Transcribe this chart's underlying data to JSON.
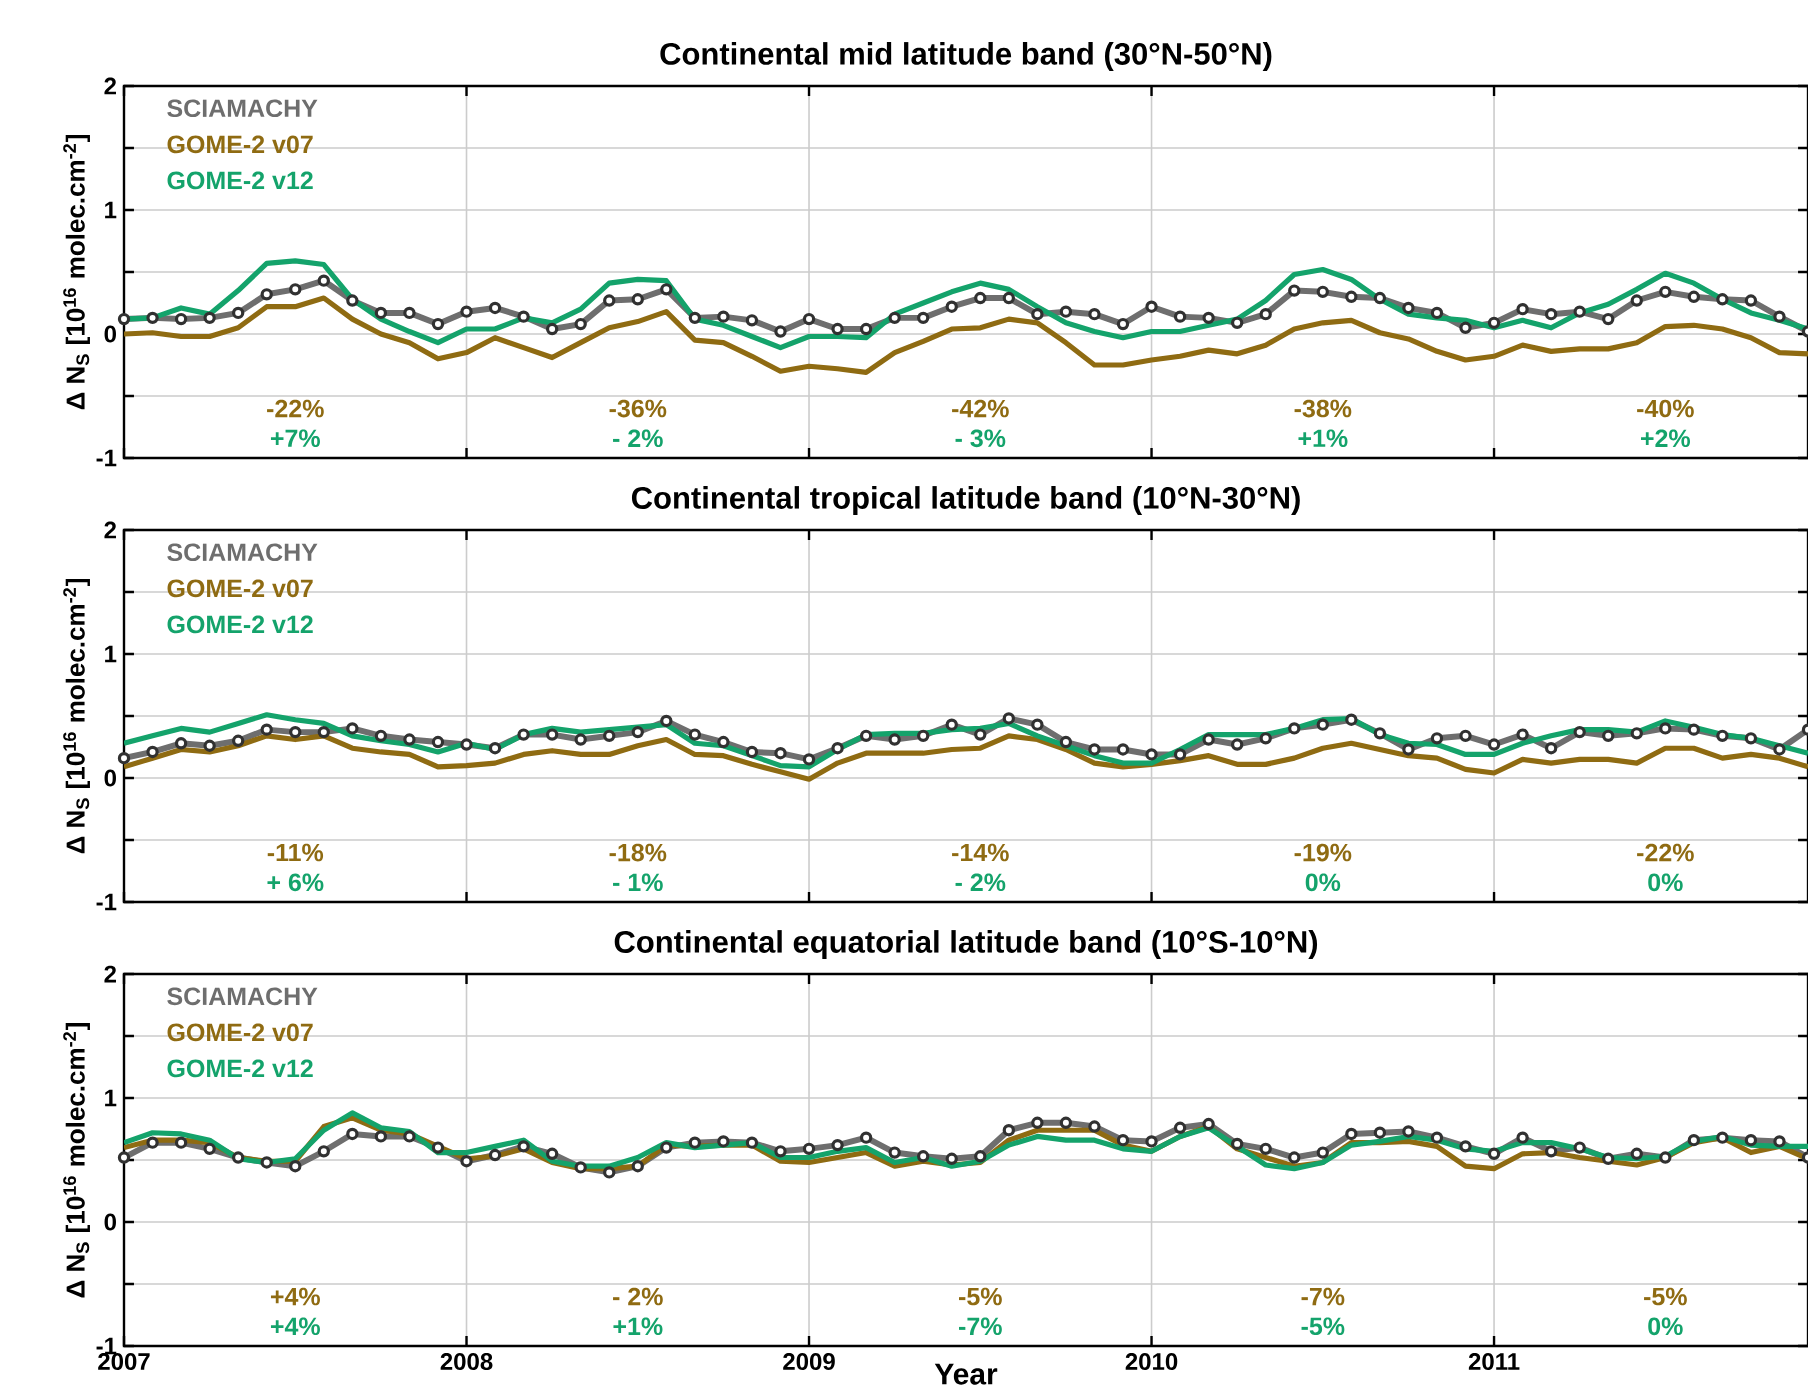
{
  "chart_data": [
    {
      "type": "line",
      "title": "Continental mid latitude band (30°N-50°N)",
      "ylabel": "Δ N$_{S}$ [10$^{16}$ molec.cm$^{-2}$]",
      "x": [
        "2007-01",
        "2007-02",
        "2007-03",
        "2007-04",
        "2007-05",
        "2007-06",
        "2007-07",
        "2007-08",
        "2007-09",
        "2007-10",
        "2007-11",
        "2007-12",
        "2008-01",
        "2008-02",
        "2008-03",
        "2008-04",
        "2008-05",
        "2008-06",
        "2008-07",
        "2008-08",
        "2008-09",
        "2008-10",
        "2008-11",
        "2008-12",
        "2009-01",
        "2009-02",
        "2009-03",
        "2009-04",
        "2009-05",
        "2009-06",
        "2009-07",
        "2009-08",
        "2009-09",
        "2009-10",
        "2009-11",
        "2009-12",
        "2010-01",
        "2010-02",
        "2010-03",
        "2010-04",
        "2010-05",
        "2010-06",
        "2010-07",
        "2010-08",
        "2010-09",
        "2010-10",
        "2010-11",
        "2010-12",
        "2011-01",
        "2011-02",
        "2011-03",
        "2011-04",
        "2011-05",
        "2011-06",
        "2011-07",
        "2011-08",
        "2011-09",
        "2011-10",
        "2011-11",
        "2011-12"
      ],
      "series": [
        {
          "name": "SCIAMACHY",
          "color": "#6e6e6e",
          "marker": "circle",
          "values": [
            0.12,
            0.13,
            0.12,
            0.13,
            0.17,
            0.32,
            0.36,
            0.43,
            0.27,
            0.17,
            0.17,
            0.08,
            0.18,
            0.21,
            0.14,
            0.04,
            0.08,
            0.27,
            0.28,
            0.36,
            0.13,
            0.14,
            0.11,
            0.02,
            0.12,
            0.04,
            0.04,
            0.13,
            0.13,
            0.22,
            0.29,
            0.29,
            0.16,
            0.18,
            0.16,
            0.08,
            0.22,
            0.14,
            0.13,
            0.09,
            0.16,
            0.35,
            0.34,
            0.3,
            0.29,
            0.21,
            0.17,
            0.05,
            0.09,
            0.2,
            0.16,
            0.18,
            0.12,
            0.27,
            0.34,
            0.3,
            0.28,
            0.27,
            0.14,
            0.02
          ]
        },
        {
          "name": "GOME-2 v07",
          "color": "#8f6b12",
          "values": [
            0,
            0.01,
            -0.02,
            -0.02,
            0.05,
            0.22,
            0.22,
            0.29,
            0.12,
            0,
            -0.07,
            -0.2,
            -0.15,
            -0.03,
            -0.11,
            -0.19,
            -0.07,
            0.05,
            0.1,
            0.18,
            -0.05,
            -0.07,
            -0.18,
            -0.3,
            -0.26,
            -0.28,
            -0.31,
            -0.15,
            -0.06,
            0.04,
            0.05,
            0.12,
            0.09,
            -0.07,
            -0.25,
            -0.25,
            -0.21,
            -0.18,
            -0.13,
            -0.16,
            -0.09,
            0.04,
            0.09,
            0.11,
            0.01,
            -0.04,
            -0.14,
            -0.21,
            -0.18,
            -0.09,
            -0.14,
            -0.12,
            -0.12,
            -0.07,
            0.06,
            0.07,
            0.04,
            -0.03,
            -0.15,
            -0.16
          ]
        },
        {
          "name": "GOME-2 v12",
          "color": "#14a36b",
          "values": [
            0.12,
            0.13,
            0.21,
            0.16,
            0.35,
            0.57,
            0.59,
            0.56,
            0.28,
            0.12,
            0.02,
            -0.07,
            0.04,
            0.04,
            0.13,
            0.09,
            0.2,
            0.41,
            0.44,
            0.43,
            0.12,
            0.07,
            -0.02,
            -0.11,
            -0.02,
            -0.02,
            -0.03,
            0.16,
            0.25,
            0.34,
            0.41,
            0.36,
            0.22,
            0.09,
            0.02,
            -0.03,
            0.02,
            0.02,
            0.07,
            0.12,
            0.27,
            0.48,
            0.52,
            0.44,
            0.28,
            0.16,
            0.13,
            0.11,
            0.05,
            0.11,
            0.05,
            0.17,
            0.24,
            0.36,
            0.49,
            0.41,
            0.28,
            0.17,
            0.11,
            0.04
          ]
        }
      ],
      "xlim": [
        "2007",
        "2011-12"
      ],
      "xticks": [
        "2007",
        "2008",
        "2009",
        "2010",
        "2011"
      ],
      "ylim": [
        -1,
        2
      ],
      "yticks": [
        -1,
        {
          "value": -0.5,
          "label": null
        },
        0,
        {
          "value": 0.5,
          "label": null
        },
        1,
        {
          "value": 1.5,
          "label": null
        },
        2
      ],
      "tick_labels": "y",
      "grid": true,
      "legend": "top left",
      "annotations": [
        "-22%",
        "+7%",
        "-36%",
        "- 2%",
        "-42%",
        "- 3%",
        "-38%",
        "+1%",
        "-40%",
        "+2%"
      ]
    },
    {
      "type": "line",
      "title": "Continental tropical latitude band (10°N-30°N)",
      "ylabel": "Δ N$_{S}$ [10$^{16}$ molec.cm$^{-2}$]",
      "x": [
        "2007-01",
        "2007-02",
        "2007-03",
        "2007-04",
        "2007-05",
        "2007-06",
        "2007-07",
        "2007-08",
        "2007-09",
        "2007-10",
        "2007-11",
        "2007-12",
        "2008-01",
        "2008-02",
        "2008-03",
        "2008-04",
        "2008-05",
        "2008-06",
        "2008-07",
        "2008-08",
        "2008-09",
        "2008-10",
        "2008-11",
        "2008-12",
        "2009-01",
        "2009-02",
        "2009-03",
        "2009-04",
        "2009-05",
        "2009-06",
        "2009-07",
        "2009-08",
        "2009-09",
        "2009-10",
        "2009-11",
        "2009-12",
        "2010-01",
        "2010-02",
        "2010-03",
        "2010-04",
        "2010-05",
        "2010-06",
        "2010-07",
        "2010-08",
        "2010-09",
        "2010-10",
        "2010-11",
        "2010-12",
        "2011-01",
        "2011-02",
        "2011-03",
        "2011-04",
        "2011-05",
        "2011-06",
        "2011-07",
        "2011-08",
        "2011-09",
        "2011-10",
        "2011-11",
        "2011-12"
      ],
      "series": [
        {
          "name": "SCIAMACHY",
          "color": "#6e6e6e",
          "marker": "circle",
          "values": [
            0.16,
            0.21,
            0.28,
            0.26,
            0.3,
            0.39,
            0.37,
            0.37,
            0.4,
            0.34,
            0.31,
            0.29,
            0.27,
            0.24,
            0.35,
            0.35,
            0.31,
            0.34,
            0.37,
            0.46,
            0.35,
            0.29,
            0.21,
            0.2,
            0.15,
            0.24,
            0.34,
            0.31,
            0.34,
            0.43,
            0.35,
            0.48,
            0.43,
            0.29,
            0.23,
            0.23,
            0.19,
            0.19,
            0.31,
            0.27,
            0.32,
            0.4,
            0.43,
            0.47,
            0.36,
            0.23,
            0.32,
            0.34,
            0.27,
            0.35,
            0.24,
            0.37,
            0.34,
            0.36,
            0.4,
            0.39,
            0.34,
            0.32,
            0.23,
            0.39
          ]
        },
        {
          "name": "GOME-2 v07",
          "color": "#8f6b12",
          "values": [
            0.09,
            0.16,
            0.23,
            0.21,
            0.26,
            0.34,
            0.31,
            0.34,
            0.24,
            0.21,
            0.19,
            0.09,
            0.1,
            0.12,
            0.19,
            0.22,
            0.19,
            0.19,
            0.26,
            0.31,
            0.19,
            0.18,
            0.11,
            0.05,
            -0.01,
            0.12,
            0.2,
            0.2,
            0.2,
            0.23,
            0.24,
            0.34,
            0.31,
            0.23,
            0.12,
            0.09,
            0.11,
            0.14,
            0.18,
            0.11,
            0.11,
            0.16,
            0.24,
            0.28,
            0.23,
            0.18,
            0.16,
            0.07,
            0.04,
            0.15,
            0.12,
            0.15,
            0.15,
            0.12,
            0.24,
            0.24,
            0.16,
            0.19,
            0.16,
            0.09
          ]
        },
        {
          "name": "GOME-2 v12",
          "color": "#14a36b",
          "values": [
            0.28,
            0.34,
            0.4,
            0.37,
            0.44,
            0.51,
            0.47,
            0.44,
            0.34,
            0.3,
            0.27,
            0.21,
            0.28,
            0.23,
            0.35,
            0.4,
            0.37,
            0.39,
            0.41,
            0.43,
            0.28,
            0.26,
            0.18,
            0.1,
            0.09,
            0.23,
            0.35,
            0.36,
            0.36,
            0.39,
            0.4,
            0.44,
            0.34,
            0.26,
            0.18,
            0.12,
            0.12,
            0.23,
            0.35,
            0.35,
            0.35,
            0.4,
            0.47,
            0.48,
            0.35,
            0.28,
            0.27,
            0.19,
            0.19,
            0.28,
            0.34,
            0.39,
            0.39,
            0.37,
            0.46,
            0.41,
            0.35,
            0.32,
            0.26,
            0.2
          ]
        }
      ],
      "xlim": [
        "2007",
        "2011-12"
      ],
      "xticks": [
        "2007",
        "2008",
        "2009",
        "2010",
        "2011"
      ],
      "ylim": [
        -1,
        2
      ],
      "yticks": [
        -1,
        {
          "value": -0.5,
          "label": null
        },
        0,
        {
          "value": 0.5,
          "label": null
        },
        1,
        {
          "value": 1.5,
          "label": null
        },
        2
      ],
      "tick_labels": "y",
      "grid": true,
      "legend": "top left",
      "annotations": [
        "-11%",
        "+ 6%",
        "-18%",
        "- 1%",
        "-14%",
        "- 2%",
        "-19%",
        "0%",
        "-22%",
        "0%"
      ]
    },
    {
      "type": "line",
      "title": "Continental equatorial latitude band (10°S-10°N)",
      "ylabel": "Δ N$_{S}$ [10$^{16}$ molec.cm$^{-2}$]",
      "xlabel": "Year",
      "x": [
        "2007-01",
        "2007-02",
        "2007-03",
        "2007-04",
        "2007-05",
        "2007-06",
        "2007-07",
        "2007-08",
        "2007-09",
        "2007-10",
        "2007-11",
        "2007-12",
        "2008-01",
        "2008-02",
        "2008-03",
        "2008-04",
        "2008-05",
        "2008-06",
        "2008-07",
        "2008-08",
        "2008-09",
        "2008-10",
        "2008-11",
        "2008-12",
        "2009-01",
        "2009-02",
        "2009-03",
        "2009-04",
        "2009-05",
        "2009-06",
        "2009-07",
        "2009-08",
        "2009-09",
        "2009-10",
        "2009-11",
        "2009-12",
        "2010-01",
        "2010-02",
        "2010-03",
        "2010-04",
        "2010-05",
        "2010-06",
        "2010-07",
        "2010-08",
        "2010-09",
        "2010-10",
        "2010-11",
        "2010-12",
        "2011-01",
        "2011-02",
        "2011-03",
        "2011-04",
        "2011-05",
        "2011-06",
        "2011-07",
        "2011-08",
        "2011-09",
        "2011-10",
        "2011-11",
        "2011-12"
      ],
      "series": [
        {
          "name": "SCIAMACHY",
          "color": "#6e6e6e",
          "marker": "circle",
          "values": [
            0.52,
            0.64,
            0.64,
            0.59,
            0.52,
            0.48,
            0.45,
            0.57,
            0.71,
            0.69,
            0.69,
            0.6,
            0.49,
            0.54,
            0.61,
            0.55,
            0.44,
            0.4,
            0.45,
            0.6,
            0.64,
            0.65,
            0.64,
            0.57,
            0.59,
            0.62,
            0.68,
            0.56,
            0.53,
            0.51,
            0.53,
            0.74,
            0.8,
            0.8,
            0.77,
            0.66,
            0.65,
            0.76,
            0.79,
            0.63,
            0.59,
            0.52,
            0.56,
            0.71,
            0.72,
            0.73,
            0.68,
            0.61,
            0.55,
            0.68,
            0.57,
            0.6,
            0.51,
            0.55,
            0.52,
            0.66,
            0.68,
            0.66,
            0.65,
            0.52
          ]
        },
        {
          "name": "GOME-2 v07",
          "color": "#8f6b12",
          "values": [
            0.6,
            0.66,
            0.66,
            0.64,
            0.52,
            0.49,
            0.49,
            0.77,
            0.84,
            0.74,
            0.71,
            0.61,
            0.51,
            0.53,
            0.59,
            0.48,
            0.43,
            0.43,
            0.45,
            0.62,
            0.61,
            0.62,
            0.62,
            0.49,
            0.48,
            0.52,
            0.56,
            0.45,
            0.49,
            0.46,
            0.48,
            0.66,
            0.74,
            0.74,
            0.74,
            0.62,
            0.57,
            0.69,
            0.77,
            0.59,
            0.52,
            0.45,
            0.48,
            0.64,
            0.64,
            0.65,
            0.61,
            0.45,
            0.43,
            0.55,
            0.56,
            0.52,
            0.49,
            0.46,
            0.52,
            0.64,
            0.68,
            0.56,
            0.61,
            0.51
          ]
        },
        {
          "name": "GOME-2 v12",
          "color": "#14a36b",
          "values": [
            0.64,
            0.72,
            0.71,
            0.66,
            0.51,
            0.48,
            0.51,
            0.74,
            0.88,
            0.76,
            0.73,
            0.56,
            0.56,
            0.61,
            0.66,
            0.49,
            0.45,
            0.45,
            0.52,
            0.64,
            0.6,
            0.62,
            0.64,
            0.52,
            0.52,
            0.57,
            0.6,
            0.48,
            0.52,
            0.45,
            0.49,
            0.62,
            0.69,
            0.66,
            0.66,
            0.59,
            0.57,
            0.69,
            0.76,
            0.61,
            0.46,
            0.43,
            0.48,
            0.62,
            0.65,
            0.69,
            0.66,
            0.59,
            0.57,
            0.64,
            0.64,
            0.59,
            0.52,
            0.51,
            0.53,
            0.65,
            0.69,
            0.62,
            0.61,
            0.61
          ]
        }
      ],
      "xlim": [
        "2007",
        "2011-12"
      ],
      "xticks": [
        "2007",
        "2008",
        "2009",
        "2010",
        "2011"
      ],
      "ylim": [
        -1,
        2
      ],
      "yticks": [
        -1,
        {
          "value": -0.5,
          "label": null
        },
        0,
        {
          "value": 0.5,
          "label": null
        },
        1,
        {
          "value": 1.5,
          "label": null
        },
        2
      ],
      "grid": true,
      "legend": "top left",
      "annotations": [
        "+4%",
        "+4%",
        "- 2%",
        "+1%",
        "-5%",
        "-7%",
        "-7%",
        "-5%",
        "-5%",
        "0%"
      ]
    }
  ]
}
